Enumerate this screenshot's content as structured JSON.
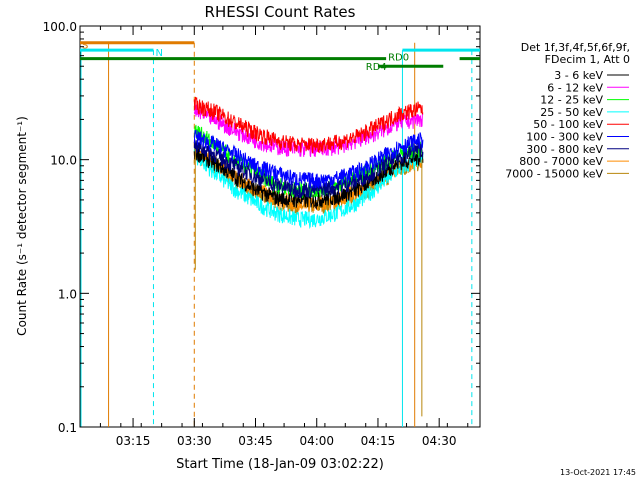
{
  "chart_data": {
    "type": "line",
    "title": "RHESSI Count Rates",
    "xlabel": "Start Time (18-Jan-09 03:02:22)",
    "ylabel": "Count Rate (s⁻¹ detector segment⁻¹)",
    "x_scale": "time",
    "y_scale": "log",
    "xlim": [
      "03:02",
      "04:40"
    ],
    "ylim": [
      0.1,
      100.0
    ],
    "x_ticks": [
      "03:15",
      "03:30",
      "03:45",
      "04:00",
      "04:15",
      "04:30"
    ],
    "y_ticks": [
      "0.1",
      "1.0",
      "10.0",
      "100.0"
    ],
    "grid": false,
    "legend_position": "right",
    "legend_header": [
      "Det 1f,3f,4f,5f,6f,9f,",
      "FDecim 1, Att 0"
    ],
    "timestamp": "13-Oct-2021 17:45",
    "x": [
      "03:30",
      "03:35",
      "03:40",
      "03:45",
      "03:50",
      "03:55",
      "04:00",
      "04:05",
      "04:10",
      "04:15",
      "04:20",
      "04:25"
    ],
    "series": [
      {
        "name": "3 - 6 keV",
        "color": "#000000",
        "values": [
          11.5,
          9.5,
          7.5,
          6.0,
          5.2,
          5.0,
          5.0,
          5.3,
          6.0,
          7.5,
          9.5,
          10.5
        ]
      },
      {
        "name": "6 - 12 keV",
        "color": "#ff00ff",
        "values": [
          23,
          20,
          16.5,
          14,
          12.5,
          12,
          12,
          12.5,
          14,
          16,
          19,
          20
        ]
      },
      {
        "name": "12 - 25 keV",
        "color": "#00ff00",
        "values": [
          17,
          13,
          10,
          8,
          6.5,
          6,
          6,
          6.5,
          7.5,
          9,
          11,
          12
        ]
      },
      {
        "name": "25 - 50 keV",
        "color": "#00ffff",
        "values": [
          11,
          8,
          6,
          4.8,
          4,
          3.6,
          3.6,
          4,
          4.8,
          6.3,
          8.5,
          10
        ]
      },
      {
        "name": "50 - 100 keV",
        "color": "#ff0000",
        "values": [
          26,
          23,
          19,
          16,
          14,
          13,
          13,
          13.5,
          15,
          18,
          22,
          24
        ]
      },
      {
        "name": "100 - 300 keV",
        "color": "#0000ff",
        "values": [
          15,
          13,
          11,
          9,
          8,
          7.2,
          7,
          7.3,
          8.2,
          10,
          12.5,
          14
        ]
      },
      {
        "name": "300 - 800 keV",
        "color": "#000080",
        "values": [
          13,
          11,
          9,
          7.5,
          6.5,
          6,
          6,
          6.3,
          7,
          8.5,
          10.5,
          12
        ]
      },
      {
        "name": "800 - 7000 keV",
        "color": "#ff8c00",
        "values": [
          12,
          9.5,
          7.5,
          6,
          5.2,
          4.8,
          4.8,
          5.1,
          5.8,
          7,
          9,
          10
        ]
      },
      {
        "name": "7000 - 15000 keV",
        "color": "#b8860b",
        "values": [
          11,
          9,
          7,
          5.6,
          4.9,
          4.5,
          4.5,
          4.8,
          5.5,
          6.6,
          8.5,
          9.5
        ]
      }
    ],
    "annotations": [
      "S",
      "N",
      "RD0",
      "RD4"
    ]
  }
}
